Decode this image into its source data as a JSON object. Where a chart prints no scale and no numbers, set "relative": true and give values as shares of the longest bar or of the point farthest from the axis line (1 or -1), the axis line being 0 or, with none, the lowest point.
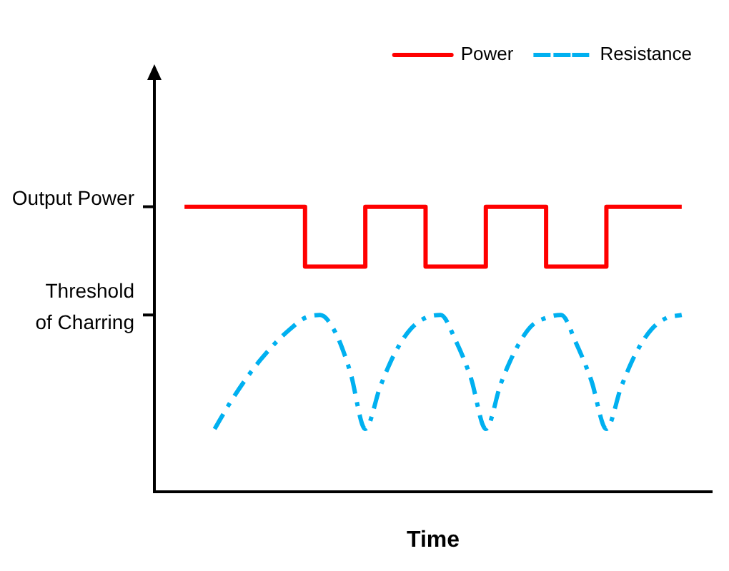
{
  "chart_data": {
    "type": "step",
    "xlabel": "Time",
    "relative": true,
    "categories": [
      null,
      null,
      null,
      null,
      null,
      null,
      null,
      null,
      null,
      null,
      null,
      null,
      null,
      null,
      null,
      null,
      null,
      null,
      null,
      null,
      null,
      null,
      null,
      null,
      null,
      null,
      null,
      null,
      null,
      null,
      null,
      null,
      null,
      null,
      null,
      null,
      null,
      null
    ],
    "series": [
      {
        "name": "Power",
        "color": "#ff0000",
        "line_style": "solid",
        "values": [
          null,
          null,
          1,
          1,
          1,
          1,
          1,
          1,
          1,
          1,
          1,
          0.79,
          0.79,
          0.79,
          0.79,
          1,
          1,
          1,
          1,
          0.79,
          0.79,
          0.79,
          0.79,
          1,
          1,
          1,
          1,
          0.79,
          0.79,
          0.79,
          0.79,
          1,
          1,
          1,
          1,
          1,
          null,
          null
        ]
      },
      {
        "name": "Resistance",
        "type": "line",
        "color": "#00b0f0",
        "line_style": "dashed",
        "values": [
          null,
          null,
          null,
          null,
          0.22,
          0.31,
          0.39,
          0.46,
          0.52,
          0.57,
          0.61,
          0.62,
          0.56,
          0.42,
          0.22,
          0.37,
          0.49,
          0.57,
          0.61,
          0.62,
          0.53,
          0.4,
          0.22,
          0.38,
          0.5,
          0.58,
          0.61,
          0.62,
          0.52,
          0.39,
          0.22,
          0.37,
          0.49,
          0.57,
          0.61,
          0.62,
          null,
          null
        ]
      }
    ],
    "ref_lines": [
      {
        "axis": "y",
        "value": 1,
        "label": "Output Power"
      },
      {
        "axis": "y",
        "value": 0.62,
        "label": "Threshold of Charring"
      }
    ],
    "grid": false,
    "legend": "top right",
    "marker": "none"
  }
}
